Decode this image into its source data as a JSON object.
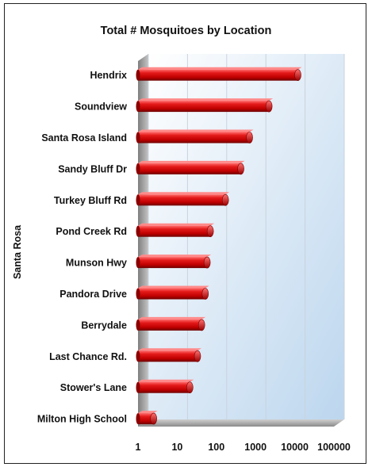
{
  "chart_data": {
    "type": "bar",
    "orientation": "horizontal",
    "title": "Total # Mosquitoes by Location",
    "ylabel": "Santa Rosa",
    "xlabel": "",
    "xscale": "log",
    "xlim": [
      1,
      100000
    ],
    "xticks": [
      "1",
      "10",
      "100",
      "1000",
      "10000",
      "100000"
    ],
    "grid": true,
    "categories": [
      "Hendrix",
      "Soundview",
      "Santa Rosa Island",
      "Sandy Bluff Dr",
      "Turkey Bluff Rd",
      "Pond Creek Rd",
      "Munson Hwy",
      "Pandora Drive",
      "Berrydale",
      "Last Chance Rd.",
      "Stower's Lane",
      "Milton High School"
    ],
    "values": [
      12000,
      2200,
      700,
      420,
      170,
      70,
      58,
      52,
      42,
      33,
      21,
      2.5
    ],
    "bar_color": "#cc0000"
  }
}
